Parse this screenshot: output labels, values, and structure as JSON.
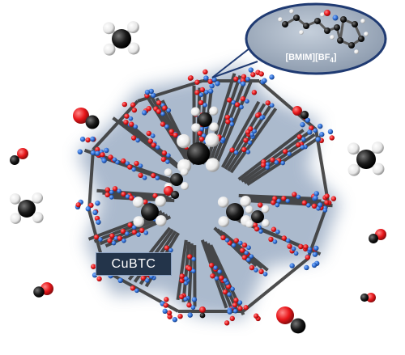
{
  "labels": {
    "framework": "CuBTC",
    "ionic_liquid_main": "[BMIM][BF",
    "ionic_liquid_sub": "4",
    "ionic_liquid_close": "]"
  },
  "colors": {
    "oxygen": "#e8161a",
    "carbon": "#1a1a1a",
    "copper": "#2f6fd6",
    "hydrogen": "#f2f2f2",
    "framework_glow": "#8fa3bd",
    "bond": "#3a3a3a",
    "inset_bg": "#9aa9bb"
  },
  "molecules": {
    "methane": "methane-molecule",
    "carbon_monoxide": "carbon-monoxide-molecule"
  }
}
